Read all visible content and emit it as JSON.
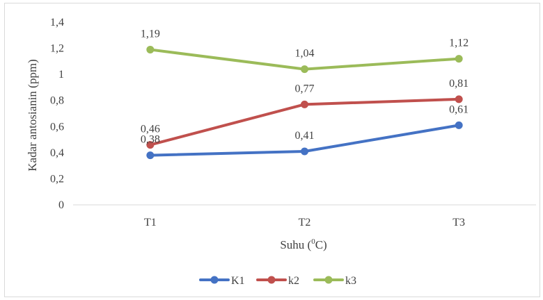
{
  "chart_data": {
    "type": "line",
    "title": "",
    "xlabel": "Suhu (",
    "xlabel_sup": "0",
    "xlabel_end": "C)",
    "ylabel": "Kadar antosianin (ppm)",
    "categories": [
      "T1",
      "T2",
      "T3"
    ],
    "ylim": [
      0,
      1.4
    ],
    "yticks": [
      0,
      0.2,
      0.4,
      0.6,
      0.8,
      1,
      1.2,
      1.4
    ],
    "ytick_labels": [
      "0",
      "0,2",
      "0,4",
      "0,6",
      "0,8",
      "1",
      "1,2",
      "1,4"
    ],
    "grid": false,
    "legend_position": "bottom",
    "series": [
      {
        "name": "K1",
        "color": "#4472c4",
        "values": [
          0.38,
          0.41,
          0.61
        ],
        "labels": [
          "0,38",
          "0,41",
          "0,61"
        ]
      },
      {
        "name": "k2",
        "color": "#c0504d",
        "values": [
          0.46,
          0.77,
          0.81
        ],
        "labels": [
          "0,46",
          "0,77",
          "0,81"
        ]
      },
      {
        "name": "k3",
        "color": "#9bbb59",
        "values": [
          1.19,
          1.04,
          1.12
        ],
        "labels": [
          "1,19",
          "1,04",
          "1,12"
        ]
      }
    ]
  }
}
